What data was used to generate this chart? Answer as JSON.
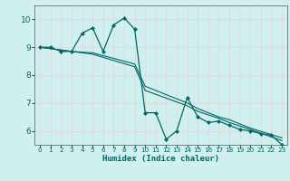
{
  "xlabel": "Humidex (Indice chaleur)",
  "bg_color": "#cff0ee",
  "grid_color": "#e8d8d8",
  "line_color": "#006666",
  "xlim": [
    -0.5,
    23.5
  ],
  "ylim": [
    5.5,
    10.5
  ],
  "yticks": [
    6,
    7,
    8,
    9,
    10
  ],
  "xticks": [
    0,
    1,
    2,
    3,
    4,
    5,
    6,
    7,
    8,
    9,
    10,
    11,
    12,
    13,
    14,
    15,
    16,
    17,
    18,
    19,
    20,
    21,
    22,
    23
  ],
  "series1_x": [
    0,
    1,
    2,
    3,
    4,
    5,
    6,
    7,
    8,
    9,
    10,
    11,
    12,
    13,
    14,
    15,
    16,
    17,
    18,
    19,
    20,
    21,
    22,
    23
  ],
  "series1_y": [
    9.0,
    9.0,
    8.85,
    8.85,
    9.5,
    9.7,
    8.85,
    9.8,
    10.05,
    9.65,
    6.65,
    6.65,
    5.7,
    6.0,
    7.2,
    6.5,
    6.3,
    6.35,
    6.2,
    6.05,
    6.0,
    5.9,
    5.85,
    5.5
  ],
  "series2_x": [
    0,
    3,
    5,
    9,
    10,
    14,
    15,
    17,
    18,
    20,
    23
  ],
  "series2_y": [
    9.0,
    8.85,
    8.8,
    8.4,
    7.6,
    7.0,
    6.8,
    6.5,
    6.4,
    6.1,
    5.75
  ],
  "series3_x": [
    0,
    3,
    5,
    9,
    10,
    14,
    15,
    17,
    18,
    20,
    23
  ],
  "series3_y": [
    9.0,
    8.85,
    8.75,
    8.3,
    7.45,
    6.9,
    6.7,
    6.45,
    6.3,
    6.05,
    5.65
  ]
}
